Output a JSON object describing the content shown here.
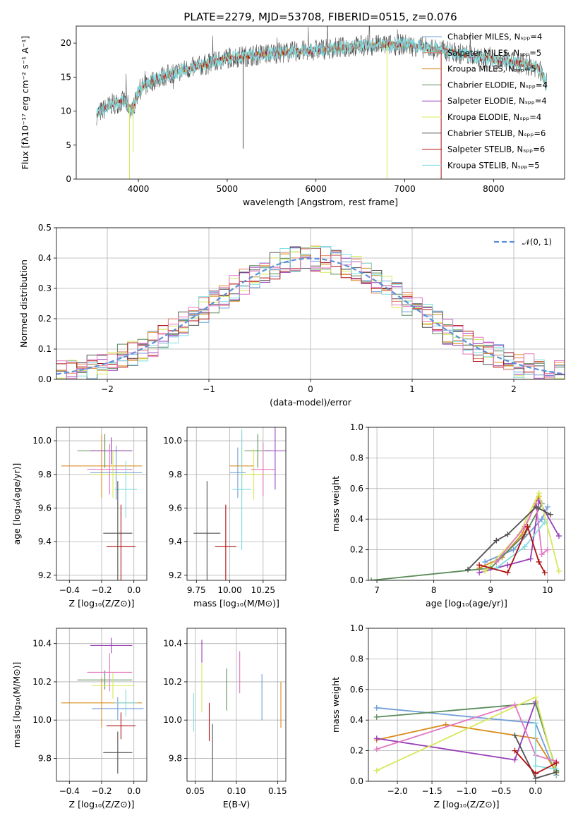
{
  "colors": {
    "chabrier_miles": "#6f9ed8",
    "salpeter_miles": "#e07a5f",
    "kroupa_miles": "#d98c1e",
    "chabrier_elodie": "#5b8c5a",
    "salpeter_elodie": "#9a3fb9",
    "kroupa_elodie": "#d7e85a",
    "chabrier_stelib": "#505050",
    "salpeter_stelib": "#b01010",
    "kroupa_stelib": "#80dde0",
    "pink": "#e377c2",
    "normal": "#5b8fd6"
  },
  "chart_data": [
    {
      "id": "spectrum",
      "type": "line",
      "title": "PLATE=2279, MJD=53708, FIBERID=0515, z=0.076",
      "xlabel": "wavelength [Angstrom, rest frame]",
      "ylabel": "Flux [fλ10⁻¹⁷ erg cm⁻² s⁻¹ A⁻¹]",
      "xlim": [
        3300,
        8800
      ],
      "ylim": [
        0,
        22.5
      ],
      "xticks": [
        "4000",
        "5000",
        "6000",
        "7000",
        "8000"
      ],
      "yticks": [
        "0",
        "5",
        "10",
        "15",
        "20"
      ],
      "legend_position": "right",
      "legend": [
        "Chabrier MILES, Nₛₚₚ=4",
        "Salpeter MILES, Nₛₚₚ=5",
        "Kroupa MILES, Nₛₚₚ=5",
        "Chabrier ELODIE, Nₛₚₚ=4",
        "Salpeter ELODIE, Nₛₚₚ=4",
        "Kroupa ELODIE, Nₛₚₚ=4",
        "Chabrier STELIB, Nₛₚₚ=6",
        "Salpeter STELIB, Nₛₚₚ=6",
        "Kroupa STELIB, Nₛₚₚ=5"
      ],
      "continuum": [
        [
          3530,
          9.5
        ],
        [
          3700,
          11.0
        ],
        [
          3850,
          11.5
        ],
        [
          3930,
          10.0
        ],
        [
          4000,
          13.0
        ],
        [
          4200,
          14.8
        ],
        [
          4500,
          16.0
        ],
        [
          4800,
          17.0
        ],
        [
          5000,
          17.8
        ],
        [
          5500,
          18.5
        ],
        [
          6000,
          19.0
        ],
        [
          6500,
          19.6
        ],
        [
          7000,
          19.8
        ],
        [
          7400,
          19.0
        ],
        [
          7800,
          18.0
        ],
        [
          8200,
          17.2
        ],
        [
          8500,
          16.5
        ],
        [
          8600,
          14.0
        ]
      ]
    },
    {
      "id": "residuals",
      "type": "histogram",
      "xlabel": "(data-model)/error",
      "ylabel": "Normed distribution",
      "xlim": [
        -2.5,
        2.5
      ],
      "ylim": [
        0,
        0.5
      ],
      "xticks": [
        "−2",
        "−1",
        "0",
        "1",
        "2"
      ],
      "yticks": [
        "0.0",
        "0.1",
        "0.2",
        "0.3",
        "0.4",
        "0.5"
      ],
      "legend": [
        "𝒩(0, 1)"
      ],
      "legend_position": "top-right",
      "bin_width": 0.1,
      "reference": "normal(0,1)"
    },
    {
      "id": "age_vs_Z",
      "type": "errorbar",
      "xlabel": "Z [log₁₀(Z/Z⊙)]",
      "ylabel": "age  [log₁₀(age/yr)]",
      "xlim": [
        -0.48,
        0.08
      ],
      "ylim": [
        9.17,
        10.08
      ],
      "xticks": [
        "−0.4",
        "−0.2",
        "0.0"
      ],
      "yticks": [
        "9.2",
        "9.4",
        "9.6",
        "9.8",
        "10.0"
      ],
      "points": [
        {
          "c": "chabrier_miles",
          "x": -0.11,
          "y": 9.81,
          "xe": 0.16,
          "ye": 0.16
        },
        {
          "c": "kroupa_miles",
          "x": -0.2,
          "y": 9.85,
          "xe": 0.25,
          "ye": 0.19
        },
        {
          "c": "chabrier_elodie",
          "x": -0.18,
          "y": 9.94,
          "xe": 0.17,
          "ye": 0.1
        },
        {
          "c": "salpeter_elodie",
          "x": -0.14,
          "y": 9.94,
          "xe": 0.13,
          "ye": 0.08
        },
        {
          "c": "kroupa_elodie",
          "x": -0.13,
          "y": 9.8,
          "xe": 0.13,
          "ye": 0.14
        },
        {
          "c": "pink",
          "x": -0.15,
          "y": 9.83,
          "xe": 0.14,
          "ye": 0.15
        },
        {
          "c": "kroupa_stelib",
          "x": -0.05,
          "y": 9.71,
          "xe": 0.07,
          "ye": 0.17
        },
        {
          "c": "chabrier_stelib",
          "x": -0.1,
          "y": 9.45,
          "xe": 0.09,
          "ye": 0.31
        },
        {
          "c": "salpeter_stelib",
          "x": -0.08,
          "y": 9.37,
          "xe": 0.09,
          "ye": 0.25
        }
      ]
    },
    {
      "id": "age_vs_mass",
      "type": "errorbar",
      "xlabel": "mass [log₁₀(M/M⊙)]",
      "ylabel": "",
      "xlim": [
        9.68,
        10.42
      ],
      "ylim": [
        9.17,
        10.08
      ],
      "xticks": [
        "9.75",
        "10.00",
        "10.25"
      ],
      "yticks": [
        "9.2",
        "9.4",
        "9.6",
        "9.8",
        "10.0"
      ],
      "points": [
        {
          "c": "chabrier_miles",
          "x": 10.06,
          "y": 9.81,
          "xe": 0.06,
          "ye": 0.15
        },
        {
          "c": "kroupa_miles",
          "x": 10.09,
          "y": 9.85,
          "xe": 0.09,
          "ye": 0.19
        },
        {
          "c": "chabrier_elodie",
          "x": 10.21,
          "y": 9.94,
          "xe": 0.1,
          "ye": 0.1
        },
        {
          "c": "salpeter_elodie",
          "x": 10.34,
          "y": 9.94,
          "xe": 0.08,
          "ye": 0.23
        },
        {
          "c": "kroupa_elodie",
          "x": 10.18,
          "y": 9.8,
          "xe": 0.09,
          "ye": 0.15
        },
        {
          "c": "pink",
          "x": 10.25,
          "y": 9.83,
          "xe": 0.09,
          "ye": 0.16
        },
        {
          "c": "kroupa_stelib",
          "x": 10.09,
          "y": 9.71,
          "xe": 0.07,
          "ye": 0.36
        },
        {
          "c": "chabrier_stelib",
          "x": 9.83,
          "y": 9.45,
          "xe": 0.1,
          "ye": 0.31
        },
        {
          "c": "salpeter_stelib",
          "x": 9.97,
          "y": 9.37,
          "xe": 0.08,
          "ye": 0.25
        }
      ]
    },
    {
      "id": "weight_vs_age",
      "type": "line",
      "xlabel": "age  [log₁₀(age/yr)]",
      "ylabel": "mass weight",
      "xlim": [
        6.85,
        10.3
      ],
      "ylim": [
        0,
        1
      ],
      "xticks": [
        "7",
        "8",
        "9",
        "10"
      ],
      "yticks": [
        "0.0",
        "0.2",
        "0.4",
        "0.6",
        "0.8",
        "1.0"
      ],
      "series": [
        {
          "c": "chabrier_miles",
          "x": [
            8.9,
            9.4,
            9.9,
            10.0
          ],
          "y": [
            0.12,
            0.2,
            0.4,
            0.48
          ]
        },
        {
          "c": "kroupa_miles",
          "x": [
            8.8,
            9.2,
            9.55,
            9.85
          ],
          "y": [
            0.08,
            0.15,
            0.3,
            0.55
          ]
        },
        {
          "c": "chabrier_elodie",
          "x": [
            6.9,
            9.0,
            9.6,
            9.9
          ],
          "y": [
            0.0,
            0.08,
            0.3,
            0.5
          ]
        },
        {
          "c": "salpeter_elodie",
          "x": [
            8.8,
            9.3,
            9.7,
            9.85,
            10.2
          ],
          "y": [
            0.05,
            0.1,
            0.14,
            0.52,
            0.29
          ]
        },
        {
          "c": "kroupa_elodie",
          "x": [
            8.9,
            9.5,
            9.85,
            10.2
          ],
          "y": [
            0.06,
            0.3,
            0.57,
            0.06
          ]
        },
        {
          "c": "pink",
          "x": [
            9.1,
            9.6,
            9.8,
            9.9,
            10.0
          ],
          "y": [
            0.12,
            0.35,
            0.5,
            0.17,
            0.2
          ]
        },
        {
          "c": "kroupa_stelib",
          "x": [
            9.1,
            9.6,
            9.95
          ],
          "y": [
            0.08,
            0.22,
            0.38
          ]
        },
        {
          "c": "chabrier_stelib",
          "x": [
            8.6,
            9.1,
            9.3,
            9.8,
            10.05
          ],
          "y": [
            0.07,
            0.26,
            0.3,
            0.48,
            0.43
          ]
        },
        {
          "c": "salpeter_stelib",
          "x": [
            8.8,
            9.3,
            9.65,
            9.85,
            9.95
          ],
          "y": [
            0.1,
            0.05,
            0.35,
            0.12,
            0.05
          ]
        }
      ]
    },
    {
      "id": "mass_vs_Z",
      "type": "errorbar",
      "xlabel": "Z [log₁₀(Z/Z⊙)]",
      "ylabel": "mass [log₁₀(M/M⊙)]",
      "xlim": [
        -0.48,
        0.08
      ],
      "ylim": [
        9.68,
        10.48
      ],
      "xticks": [
        "−0.4",
        "−0.2",
        "0.0"
      ],
      "yticks": [
        "9.8",
        "10.0",
        "10.2",
        "10.4"
      ],
      "points": [
        {
          "c": "chabrier_miles",
          "x": -0.1,
          "y": 10.06,
          "xe": 0.16,
          "ye": 0.06
        },
        {
          "c": "kroupa_miles",
          "x": -0.2,
          "y": 10.09,
          "xe": 0.25,
          "ye": 0.13
        },
        {
          "c": "chabrier_elodie",
          "x": -0.18,
          "y": 10.21,
          "xe": 0.17,
          "ye": 0.05
        },
        {
          "c": "salpeter_elodie",
          "x": -0.14,
          "y": 10.39,
          "xe": 0.13,
          "ye": 0.04
        },
        {
          "c": "kroupa_elodie",
          "x": -0.13,
          "y": 10.18,
          "xe": 0.13,
          "ye": 0.07
        },
        {
          "c": "pink",
          "x": -0.15,
          "y": 10.25,
          "xe": 0.14,
          "ye": 0.1
        },
        {
          "c": "kroupa_stelib",
          "x": -0.05,
          "y": 10.09,
          "xe": 0.07,
          "ye": 0.07
        },
        {
          "c": "chabrier_stelib",
          "x": -0.1,
          "y": 9.83,
          "xe": 0.09,
          "ye": 0.11
        },
        {
          "c": "salpeter_stelib",
          "x": -0.08,
          "y": 9.97,
          "xe": 0.09,
          "ye": 0.07
        }
      ]
    },
    {
      "id": "mass_vs_ebv",
      "type": "errorbar",
      "xlabel": "E(B-V)",
      "ylabel": "",
      "xlim": [
        0.04,
        0.16
      ],
      "ylim": [
        9.68,
        10.48
      ],
      "xticks": [
        "0.05",
        "0.10",
        "0.15"
      ],
      "yticks": [
        "9.8",
        "10.0",
        "10.2",
        "10.4"
      ],
      "points": [
        {
          "c": "kroupa_stelib",
          "x": 0.048,
          "y": 10.04,
          "xe": 0,
          "ye": 0.1
        },
        {
          "c": "salpeter_elodie",
          "x": 0.058,
          "y": 10.36,
          "xe": 0,
          "ye": 0.06
        },
        {
          "c": "kroupa_elodie",
          "x": 0.058,
          "y": 10.17,
          "xe": 0,
          "ye": 0.13
        },
        {
          "c": "salpeter_stelib",
          "x": 0.067,
          "y": 9.99,
          "xe": 0,
          "ye": 0.1
        },
        {
          "c": "chabrier_stelib",
          "x": 0.071,
          "y": 9.81,
          "xe": 0,
          "ye": 0.17
        },
        {
          "c": "chabrier_elodie",
          "x": 0.088,
          "y": 10.16,
          "xe": 0,
          "ye": 0.11
        },
        {
          "c": "pink",
          "x": 0.104,
          "y": 10.25,
          "xe": 0,
          "ye": 0.11
        },
        {
          "c": "chabrier_miles",
          "x": 0.131,
          "y": 10.12,
          "xe": 0,
          "ye": 0.12
        },
        {
          "c": "kroupa_miles",
          "x": 0.154,
          "y": 10.08,
          "xe": 0,
          "ye": 0.12
        }
      ]
    },
    {
      "id": "weight_vs_Z",
      "type": "line",
      "xlabel": "Z [log₁₀(Z/Z⊙)]",
      "ylabel": "mass weight",
      "xlim": [
        -2.42,
        0.42
      ],
      "ylim": [
        0,
        1
      ],
      "xticks": [
        "−2.0",
        "−1.5",
        "−1.0",
        "−0.5",
        "0.0"
      ],
      "yticks": [
        "0.0",
        "0.2",
        "0.4",
        "0.6",
        "0.8",
        "1.0"
      ],
      "series": [
        {
          "c": "chabrier_miles",
          "x": [
            -2.3,
            0.0,
            0.3
          ],
          "y": [
            0.48,
            0.38,
            0.04
          ]
        },
        {
          "c": "kroupa_miles",
          "x": [
            -2.3,
            -1.3,
            0.0,
            0.3
          ],
          "y": [
            0.27,
            0.37,
            0.28,
            0.06
          ]
        },
        {
          "c": "chabrier_elodie",
          "x": [
            -2.3,
            0.0,
            0.3
          ],
          "y": [
            0.42,
            0.51,
            0.07
          ]
        },
        {
          "c": "salpeter_elodie",
          "x": [
            -2.3,
            -0.3,
            0.0
          ],
          "y": [
            0.28,
            0.14,
            0.52
          ]
        },
        {
          "c": "kroupa_elodie",
          "x": [
            -2.3,
            0.0,
            0.3
          ],
          "y": [
            0.07,
            0.55,
            0.05
          ]
        },
        {
          "c": "pink",
          "x": [
            -2.3,
            -0.3,
            0.0,
            0.3
          ],
          "y": [
            0.21,
            0.5,
            0.17,
            0.13
          ]
        },
        {
          "c": "kroupa_stelib",
          "x": [
            0.0,
            0.0,
            0.3
          ],
          "y": [
            0.38,
            0.1,
            0.08
          ]
        },
        {
          "c": "chabrier_stelib",
          "x": [
            -0.3,
            0.0,
            0.3
          ],
          "y": [
            0.3,
            0.02,
            0.06
          ]
        },
        {
          "c": "salpeter_stelib",
          "x": [
            -0.3,
            0.0,
            0.3
          ],
          "y": [
            0.2,
            0.05,
            0.12
          ]
        }
      ]
    }
  ]
}
